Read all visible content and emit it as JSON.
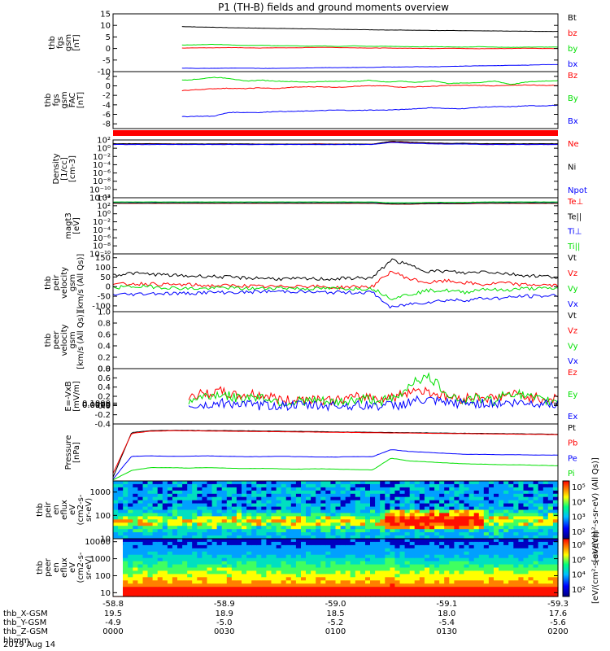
{
  "title": "P1 (TH-B) fields and ground moments overview",
  "colors": {
    "black": "#000000",
    "red": "#ff0000",
    "green": "#00e000",
    "blue": "#0000ff"
  },
  "chart_data": [
    {
      "type": "line",
      "id": "fgs_gsm",
      "ylabel": [
        "thb",
        "fgs",
        "gsm",
        "[nT]"
      ],
      "yticks": [
        "15",
        "10",
        "5",
        "0",
        "-5",
        "-10"
      ],
      "ylim": [
        -10,
        15
      ],
      "scale": "linear",
      "series": [
        {
          "name": "Bt",
          "color": "#000000",
          "start": 0.155,
          "values": [
            9.5,
            9.3,
            9.2,
            9.0,
            8.9,
            8.8,
            8.7,
            8.6,
            8.5,
            8.4,
            8.3,
            8.2,
            8.1,
            8.0,
            8.0,
            7.9,
            7.8,
            7.8,
            7.7,
            7.6,
            7.6,
            7.5,
            7.5,
            7.4,
            7.4
          ]
        },
        {
          "name": "bz",
          "color": "#ff0000",
          "start": 0.155,
          "values": [
            0.2,
            0.3,
            0.3,
            0.4,
            0.3,
            0.2,
            0.3,
            0.3,
            0.4,
            0.5,
            0.4,
            0.3,
            0.2,
            0.2,
            0.1,
            0.1,
            0.0,
            0.1,
            0.0,
            -0.1,
            0.0,
            0.0,
            0.1,
            0.0,
            0.0
          ]
        },
        {
          "name": "by",
          "color": "#00e000",
          "start": 0.155,
          "values": [
            1.5,
            1.6,
            1.8,
            1.6,
            1.3,
            1.4,
            1.2,
            1.2,
            1.0,
            1.1,
            0.9,
            1.2,
            0.9,
            1.0,
            0.8,
            0.7,
            0.8,
            0.7,
            0.6,
            0.8,
            0.6,
            0.5,
            0.6,
            0.6,
            0.6
          ]
        },
        {
          "name": "bx",
          "color": "#0000ff",
          "start": 0.155,
          "values": [
            -8.5,
            -8.6,
            -8.6,
            -8.5,
            -8.5,
            -8.6,
            -8.6,
            -8.5,
            -8.4,
            -8.3,
            -8.3,
            -8.2,
            -8.2,
            -8.0,
            -8.0,
            -7.9,
            -7.9,
            -7.8,
            -7.6,
            -7.5,
            -7.4,
            -7.3,
            -7.2,
            -7.0,
            -7.0
          ]
        }
      ]
    },
    {
      "type": "line",
      "id": "fgs_fac",
      "ylabel": [
        "thb",
        "fgs",
        "gsm",
        "FAC",
        "[nT]"
      ],
      "yticks": [
        "2",
        "0",
        "-2",
        "-4",
        "-6",
        "-8"
      ],
      "ylim": [
        -9,
        3
      ],
      "scale": "linear",
      "series": [
        {
          "name": "Bz",
          "color": "#ff0000",
          "start": 0.155,
          "values": [
            -1.0,
            -0.8,
            -0.6,
            -0.5,
            -0.6,
            -0.4,
            -0.6,
            -0.3,
            -0.2,
            -0.2,
            -0.3,
            -0.1,
            0.0,
            0.0,
            -0.3,
            -0.2,
            -0.1,
            0.1,
            0.1,
            0.1,
            0.0,
            0.1,
            0.2,
            0.1,
            0.1
          ]
        },
        {
          "name": "By",
          "color": "#00e000",
          "start": 0.155,
          "values": [
            1.2,
            1.4,
            1.8,
            1.6,
            1.0,
            1.2,
            1.0,
            0.9,
            0.8,
            0.9,
            1.0,
            0.9,
            1.2,
            0.8,
            1.0,
            0.7,
            1.1,
            0.5,
            0.6,
            0.7,
            1.0,
            0.3,
            0.8,
            1.0,
            1.1
          ]
        },
        {
          "name": "Bx",
          "color": "#0000ff",
          "start": 0.155,
          "values": [
            -6.5,
            -6.4,
            -6.4,
            -5.6,
            -5.6,
            -5.6,
            -5.4,
            -5.4,
            -5.3,
            -5.2,
            -5.1,
            -5.2,
            -5.1,
            -5.1,
            -5.0,
            -4.8,
            -4.6,
            -4.8,
            -4.8,
            -4.5,
            -4.4,
            -4.4,
            -4.2,
            -4.2,
            -4.1
          ]
        }
      ]
    },
    {
      "type": "line",
      "id": "density",
      "ylabel": [
        "Density",
        "[1/cc]",
        "[cm-3]"
      ],
      "yticks": [
        "10²",
        "10⁰",
        "10⁻²",
        "10⁻⁴",
        "10⁻⁶",
        "10⁻⁸",
        "10⁻¹⁰",
        "10⁻¹²"
      ],
      "ylim": [
        -12,
        2
      ],
      "scale": "log10",
      "series": [
        {
          "name": "Ne",
          "color": "#ff0000",
          "start": 0.0,
          "values": [
            1.0,
            1.05,
            1.1,
            1.05,
            1.0,
            1.0,
            1.05,
            1.0,
            1.0,
            1.0,
            1.0,
            1.05,
            1.0,
            1.0,
            1.0,
            1.6,
            1.4,
            1.2,
            1.1,
            1.1,
            1.0,
            1.0,
            1.0,
            1.0,
            1.0
          ]
        },
        {
          "name": "Ni",
          "color": "#000000",
          "start": 0.0,
          "values": [
            1.1,
            1.1,
            1.1,
            1.05,
            1.05,
            1.05,
            1.05,
            1.05,
            1.0,
            1.0,
            1.0,
            1.0,
            1.0,
            1.0,
            1.0,
            1.7,
            1.5,
            1.3,
            1.2,
            1.2,
            1.1,
            1.1,
            1.1,
            1.1,
            1.1
          ]
        },
        {
          "name": "Npot",
          "color": "#0000ff",
          "start": 0.0,
          "values": [
            0.9,
            0.9,
            0.9,
            0.9,
            0.9,
            0.9,
            0.9,
            0.9,
            0.9,
            0.9,
            0.9,
            0.9,
            0.9,
            0.9,
            0.9,
            1.4,
            1.2,
            1.1,
            1.0,
            1.0,
            0.9,
            0.9,
            0.9,
            0.9,
            0.9
          ]
        }
      ]
    },
    {
      "type": "line",
      "id": "temperature",
      "ylabel": [
        "magt3",
        "[eV]"
      ],
      "yticks": [
        "10⁴",
        "10²",
        "10⁰",
        "10⁻²",
        "10⁻⁴",
        "10⁻⁶",
        "10⁻⁸",
        "10⁻¹⁰"
      ],
      "ylim": [
        -10,
        4
      ],
      "scale": "log10",
      "series": [
        {
          "name": "Te⊥",
          "color": "#ff0000",
          "start": 0.0,
          "values": [
            2.6,
            2.6,
            2.6,
            2.6,
            2.6,
            2.6,
            2.6,
            2.6,
            2.6,
            2.6,
            2.6,
            2.6,
            2.6,
            2.6,
            2.6,
            2.4,
            2.4,
            2.5,
            2.5,
            2.5,
            2.6,
            2.6,
            2.6,
            2.6,
            2.6
          ]
        },
        {
          "name": "Te||",
          "color": "#000000",
          "start": 0.0,
          "values": [
            2.65,
            2.65,
            2.65,
            2.65,
            2.65,
            2.65,
            2.65,
            2.65,
            2.65,
            2.65,
            2.65,
            2.65,
            2.65,
            2.65,
            2.65,
            2.45,
            2.45,
            2.55,
            2.55,
            2.55,
            2.65,
            2.65,
            2.65,
            2.65,
            2.65
          ]
        },
        {
          "name": "Ti⊥",
          "color": "#0000ff",
          "start": 0.0,
          "values": [
            2.9,
            2.9,
            2.9,
            2.9,
            2.9,
            2.9,
            2.9,
            2.9,
            2.9,
            2.9,
            2.9,
            2.9,
            2.9,
            2.9,
            2.9,
            2.7,
            2.7,
            2.8,
            2.8,
            2.8,
            2.9,
            2.9,
            2.9,
            2.9,
            2.9
          ]
        },
        {
          "name": "Ti||",
          "color": "#00e000",
          "start": 0.0,
          "values": [
            2.95,
            2.95,
            2.95,
            2.95,
            2.95,
            2.95,
            2.95,
            2.95,
            2.95,
            2.95,
            2.95,
            2.95,
            2.95,
            2.95,
            2.95,
            2.75,
            2.75,
            2.85,
            2.85,
            2.85,
            2.95,
            2.95,
            2.95,
            2.95,
            2.95
          ]
        }
      ]
    },
    {
      "type": "line",
      "id": "ion_velocity",
      "ylabel": [
        "thb",
        "peir",
        "velocity",
        "gsm",
        "[km/s (All Qs)]"
      ],
      "yticks": [
        "150",
        "100",
        "50",
        "0",
        "-50",
        "-100"
      ],
      "ylim": [
        -130,
        170
      ],
      "scale": "linear",
      "series": [
        {
          "name": "Vt",
          "color": "#000000",
          "start": 0.0,
          "values": [
            60,
            70,
            65,
            60,
            55,
            55,
            50,
            45,
            45,
            40,
            40,
            40,
            40,
            45,
            45,
            140,
            110,
            80,
            80,
            70,
            80,
            70,
            60,
            55,
            50
          ]
        },
        {
          "name": "Vz",
          "color": "#ff0000",
          "start": 0.0,
          "values": [
            10,
            15,
            15,
            10,
            10,
            5,
            5,
            5,
            0,
            0,
            5,
            0,
            -5,
            0,
            0,
            80,
            40,
            20,
            30,
            20,
            10,
            20,
            10,
            10,
            5
          ]
        },
        {
          "name": "Vy",
          "color": "#00e000",
          "start": 0.0,
          "values": [
            -5,
            0,
            0,
            -5,
            -10,
            -10,
            -5,
            -10,
            -10,
            -5,
            -10,
            -10,
            -10,
            -10,
            -10,
            -60,
            -40,
            -20,
            -20,
            -30,
            -10,
            -20,
            -10,
            -10,
            -10
          ]
        },
        {
          "name": "Vx",
          "color": "#0000ff",
          "start": 0.0,
          "values": [
            -40,
            -40,
            -35,
            -35,
            -35,
            -30,
            -30,
            -30,
            -25,
            -25,
            -25,
            -30,
            -30,
            -30,
            -30,
            -110,
            -90,
            -80,
            -70,
            -70,
            -60,
            -60,
            -50,
            -50,
            -45
          ]
        }
      ]
    },
    {
      "type": "line",
      "id": "electron_velocity",
      "ylabel": [
        "thb",
        "peer",
        "velocity",
        "gsm",
        "[km/s (All Qs)]"
      ],
      "yticks": [
        "1.0",
        "0.8",
        "0.6",
        "0.4",
        "0.2",
        "0.0"
      ],
      "ylim": [
        0,
        1
      ],
      "scale": "linear",
      "series": [
        {
          "name": "Vt",
          "color": "#000000",
          "values": []
        },
        {
          "name": "Vz",
          "color": "#ff0000",
          "values": []
        },
        {
          "name": "Vy",
          "color": "#00e000",
          "values": []
        },
        {
          "name": "Vx",
          "color": "#0000ff",
          "values": []
        }
      ]
    },
    {
      "type": "line",
      "id": "efield",
      "ylabel": [
        "E=-VxB",
        "[mV/m]"
      ],
      "yticks": [
        "0.8",
        "0.6",
        "0.4",
        "0.2",
        "0.0",
        "-0.2",
        "-0.4"
      ],
      "ylim": [
        -0.4,
        0.8
      ],
      "scale": "linear",
      "series": [
        {
          "name": "Ez",
          "color": "#ff0000",
          "start": 0.17,
          "values": [
            0.2,
            0.25,
            0.3,
            0.2,
            0.25,
            0.2,
            0.1,
            0.15,
            0.15,
            0.1,
            0.15,
            0.2,
            0.15,
            0.2,
            0.35,
            0.3,
            0.2,
            0.15,
            0.2,
            0.15,
            0.25,
            0.2,
            0.15,
            0.15
          ]
        },
        {
          "name": "Ey",
          "color": "#00e000",
          "start": 0.17,
          "values": [
            0.1,
            0.2,
            0.25,
            0.15,
            0.2,
            0.15,
            0.05,
            0.1,
            0.1,
            0.05,
            0.1,
            0.15,
            0.1,
            0.15,
            0.55,
            0.6,
            0.3,
            0.1,
            0.15,
            0.1,
            0.3,
            0.2,
            0.1,
            0.1
          ]
        },
        {
          "name": "Ex",
          "color": "#0000ff",
          "start": 0.17,
          "values": [
            0.0,
            0.0,
            0.05,
            0.05,
            0.0,
            0.0,
            0.0,
            0.0,
            0.0,
            0.0,
            0.0,
            0.0,
            0.0,
            0.0,
            0.1,
            0.1,
            0.05,
            0.05,
            0.05,
            0.05,
            0.05,
            0.05,
            0.05,
            0.05
          ]
        }
      ]
    },
    {
      "type": "line",
      "id": "pressure",
      "ylabel": [
        "Pressure",
        "[nPa]"
      ],
      "yticks": [
        "0.1000",
        "0.0100",
        "0.0010",
        "0.0001"
      ],
      "ylim": [
        -4,
        -1
      ],
      "scale": "log10",
      "series": [
        {
          "name": "Pt",
          "color": "#000000",
          "start": 0.0,
          "values": [
            -3.8,
            -1.45,
            -1.35,
            -1.34,
            -1.34,
            -1.35,
            -1.35,
            -1.36,
            -1.37,
            -1.38,
            -1.39,
            -1.4,
            -1.42,
            -1.43,
            -1.44,
            -1.45,
            -1.46,
            -1.47,
            -1.48,
            -1.49,
            -1.5,
            -1.51,
            -1.52,
            -1.53,
            -1.54
          ]
        },
        {
          "name": "Pb",
          "color": "#ff0000",
          "start": 0.0,
          "values": [
            -3.6,
            -1.5,
            -1.38,
            -1.36,
            -1.36,
            -1.37,
            -1.38,
            -1.39,
            -1.4,
            -1.41,
            -1.42,
            -1.43,
            -1.44,
            -1.45,
            -1.46,
            -1.47,
            -1.48,
            -1.49,
            -1.5,
            -1.51,
            -1.52,
            -1.53,
            -1.54,
            -1.55,
            -1.56
          ]
        },
        {
          "name": "Pe",
          "color": "#0000ff",
          "start": 0.0,
          "values": [
            -3.9,
            -2.7,
            -2.68,
            -2.7,
            -2.7,
            -2.68,
            -2.7,
            -2.72,
            -2.72,
            -2.7,
            -2.72,
            -2.74,
            -2.74,
            -2.72,
            -2.72,
            -2.35,
            -2.45,
            -2.5,
            -2.55,
            -2.6,
            -2.6,
            -2.62,
            -2.62,
            -2.64,
            -2.64
          ]
        },
        {
          "name": "Pi",
          "color": "#00e000",
          "start": 0.0,
          "values": [
            -3.95,
            -3.45,
            -3.3,
            -3.3,
            -3.32,
            -3.3,
            -3.32,
            -3.35,
            -3.34,
            -3.36,
            -3.38,
            -3.36,
            -3.38,
            -3.4,
            -3.42,
            -2.8,
            -2.95,
            -3.0,
            -3.05,
            -3.1,
            -3.12,
            -3.15,
            -3.15,
            -3.18,
            -3.2
          ]
        }
      ]
    },
    {
      "type": "heatmap",
      "id": "ion_spectrogram",
      "ylabel": [
        "thb",
        "peir",
        "en",
        "eflux",
        "eV",
        "(cm2-s-",
        "sr-eV)"
      ],
      "yticks": [
        "1000",
        "100",
        "10"
      ],
      "ylim": [
        10,
        3000
      ],
      "scale": "log10",
      "colorbar": {
        "ticks": [
          "10⁵",
          "10⁴",
          "10³",
          "10²"
        ],
        "label": "[eV/(cm²-s-sr-eV) (All Qs)]"
      }
    },
    {
      "type": "heatmap",
      "id": "electron_spectrogram",
      "ylabel": [
        "thb",
        "peer",
        "en",
        "eflux",
        "eV",
        "(cm2-s-",
        "sr-eV)"
      ],
      "yticks": [
        "10000",
        "1000",
        "100",
        "10"
      ],
      "ylim": [
        6,
        15000
      ],
      "scale": "log10",
      "colorbar": {
        "ticks": [
          "10⁸",
          "10⁶",
          "10⁴",
          "10²"
        ],
        "label": "[eV/(cm²-s-sr-eV)]"
      }
    }
  ],
  "xaxis": {
    "ticks": [
      "-58.8",
      "-58.9",
      "-59.0",
      "-59.1",
      "-59.3"
    ],
    "rows": [
      {
        "label": "thb_X-GSM",
        "values": [
          "19.5",
          "18.9",
          "18.5",
          "18.0",
          "17.6"
        ]
      },
      {
        "label": "thb_Y-GSM",
        "values": [
          "-4.9",
          "-5.0",
          "-5.2",
          "-5.4",
          "-5.6"
        ]
      },
      {
        "label": "thb_Z-GSM",
        "values": [
          "0000",
          "0030",
          "0100",
          "0130",
          "0200"
        ]
      },
      {
        "label": "hhmm",
        "values": [
          "",
          "",
          "",
          "",
          ""
        ]
      }
    ],
    "date": "2019 Aug 14"
  }
}
